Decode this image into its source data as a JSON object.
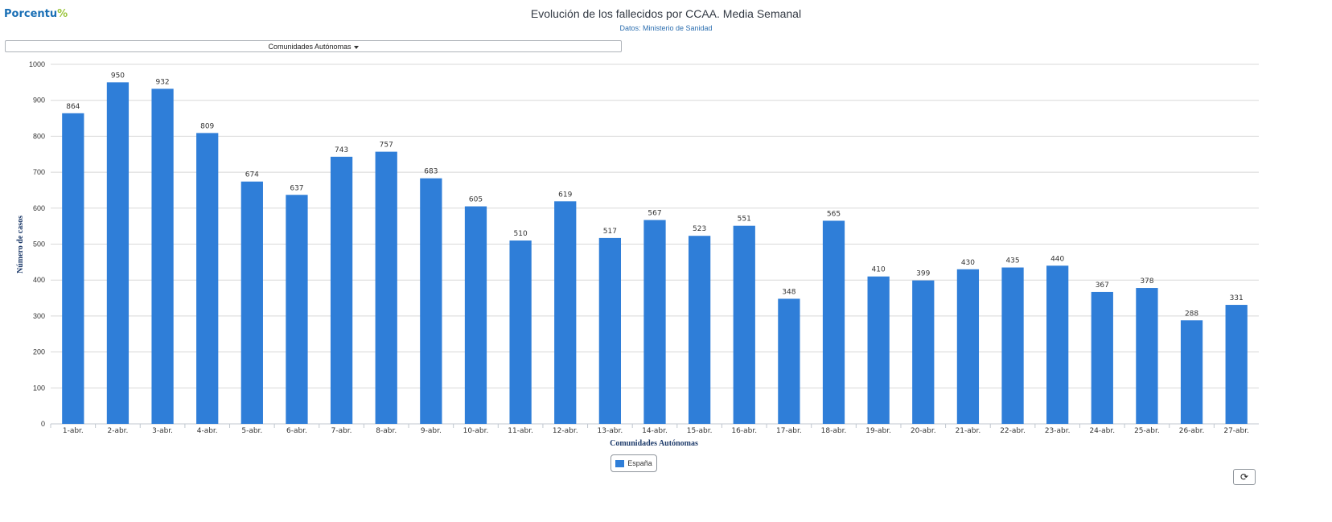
{
  "logo": {
    "text": "Porcentu",
    "mark": "%"
  },
  "header": {
    "title": "Evolución de los fallecidos por CCAA. Media Semanal",
    "subtitle": "Datos: Ministerio de Sanidad"
  },
  "selector": {
    "label": "Comunidades Autónomas"
  },
  "legend": {
    "label": "España"
  },
  "colors": {
    "bar": "#2f7ed8",
    "grid": "#d8d8d8",
    "axis_title": "#1f3c6b"
  },
  "chart_data": {
    "type": "bar",
    "xlabel": "Comunidades Autónomas",
    "ylabel": "Número de casos",
    "ylim": [
      0,
      1000
    ],
    "yticks": [
      0,
      100,
      200,
      300,
      400,
      500,
      600,
      700,
      800,
      900,
      1000
    ],
    "grid": true,
    "legend_position": "bottom-center",
    "categories": [
      "1-abr.",
      "2-abr.",
      "3-abr.",
      "4-abr.",
      "5-abr.",
      "6-abr.",
      "7-abr.",
      "8-abr.",
      "9-abr.",
      "10-abr.",
      "11-abr.",
      "12-abr.",
      "13-abr.",
      "14-abr.",
      "15-abr.",
      "16-abr.",
      "17-abr.",
      "18-abr.",
      "19-abr.",
      "20-abr.",
      "21-abr.",
      "22-abr.",
      "23-abr.",
      "24-abr.",
      "25-abr.",
      "26-abr.",
      "27-abr."
    ],
    "series": [
      {
        "name": "España",
        "values": [
          864,
          950,
          932,
          809,
          674,
          637,
          743,
          757,
          683,
          605,
          510,
          619,
          517,
          567,
          523,
          551,
          348,
          565,
          410,
          399,
          430,
          435,
          440,
          367,
          378,
          288,
          331
        ]
      }
    ]
  }
}
